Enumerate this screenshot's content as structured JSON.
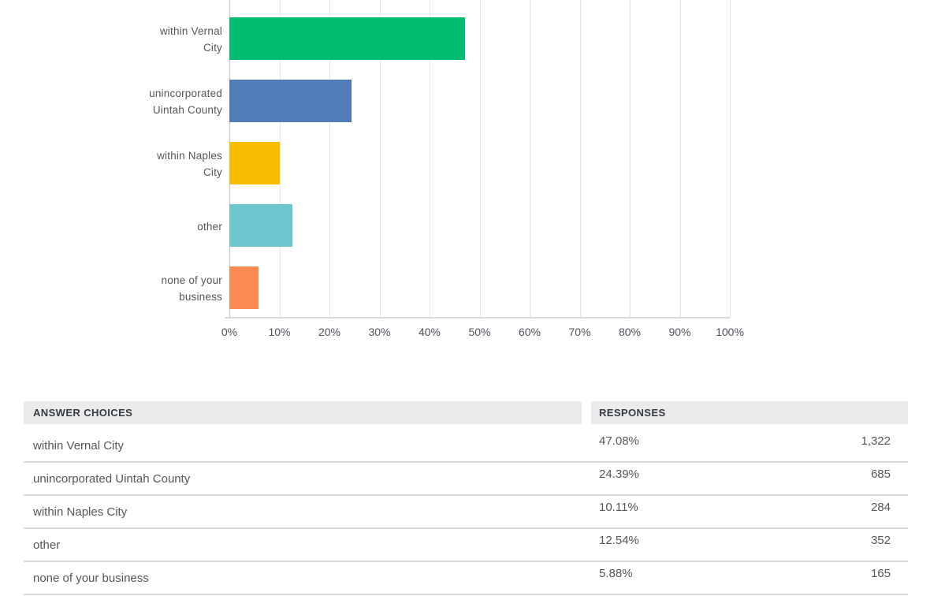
{
  "chart_data": {
    "type": "bar",
    "orientation": "horizontal",
    "title": "",
    "xlabel": "",
    "ylabel": "",
    "xlim": [
      0,
      100
    ],
    "grid": "vertical",
    "legend": "none",
    "categories": [
      "within Vernal City",
      "unincorporated Uintah County",
      "within Naples City",
      "other",
      "none of your business"
    ],
    "values": [
      47.08,
      24.39,
      10.11,
      12.54,
      5.88
    ],
    "bar_colors": [
      "#00bc6e",
      "#507cb8",
      "#f9be00",
      "#6bc6cd",
      "#fc8a53"
    ],
    "label_lines": [
      [
        "within Vernal",
        "City"
      ],
      [
        "unincorporated",
        "Uintah County"
      ],
      [
        "within Naples",
        "City"
      ],
      [
        "other"
      ],
      [
        "none of your",
        "business"
      ]
    ],
    "x_ticks": [
      "0%",
      "10%",
      "20%",
      "30%",
      "40%",
      "50%",
      "60%",
      "70%",
      "80%",
      "90%",
      "100%"
    ]
  },
  "table": {
    "headers": [
      "ANSWER CHOICES",
      "RESPONSES"
    ],
    "rows": [
      {
        "choice": "within Vernal City",
        "percent": "47.08%",
        "count": "1,322"
      },
      {
        "choice": "unincorporated Uintah County",
        "percent": "24.39%",
        "count": "685"
      },
      {
        "choice": "within Naples City",
        "percent": "10.11%",
        "count": "284"
      },
      {
        "choice": "other",
        "percent": "12.54%",
        "count": "352"
      },
      {
        "choice": "none of your business",
        "percent": "5.88%",
        "count": "165"
      }
    ]
  },
  "colors": {
    "gridline": "#e5e6e7",
    "zero_line": "#c3c6c8",
    "axis_line": "#d8d9da",
    "chart_text": "#54565b",
    "table_header_bg": "#ebebeb",
    "table_header_text": "#363c43",
    "table_text": "#54565b",
    "row_border": "#d9d9d9",
    "background": "#ffffff"
  }
}
